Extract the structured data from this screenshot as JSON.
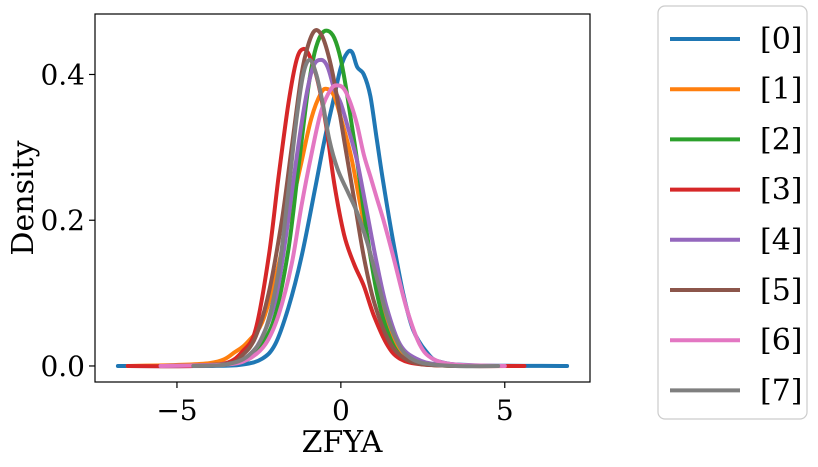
{
  "chart_data": {
    "type": "line",
    "title": "",
    "xlabel": "ZFYA",
    "ylabel": "Density",
    "xlim": [
      -7.5,
      7.6
    ],
    "ylim": [
      -0.022,
      0.483
    ],
    "xticks": [
      -5,
      0,
      5
    ],
    "xtick_labels": [
      "−5",
      "0",
      "5"
    ],
    "yticks": [
      0.0,
      0.2,
      0.4
    ],
    "ytick_labels": [
      "0.0",
      "0.2",
      "0.4"
    ],
    "grid": false,
    "legend_position": "outside-right",
    "series": [
      {
        "name": "[0]",
        "color": "#1f77b4",
        "points": [
          [
            -6.8,
            0
          ],
          [
            -4.0,
            0.0
          ],
          [
            -3.0,
            0.002
          ],
          [
            -2.4,
            0.01
          ],
          [
            -2.0,
            0.03
          ],
          [
            -1.6,
            0.08
          ],
          [
            -1.2,
            0.15
          ],
          [
            -0.8,
            0.24
          ],
          [
            -0.5,
            0.31
          ],
          [
            -0.2,
            0.37
          ],
          [
            0.0,
            0.41
          ],
          [
            0.2,
            0.43
          ],
          [
            0.35,
            0.43
          ],
          [
            0.5,
            0.41
          ],
          [
            0.7,
            0.4
          ],
          [
            0.9,
            0.37
          ],
          [
            1.1,
            0.31
          ],
          [
            1.3,
            0.25
          ],
          [
            1.6,
            0.17
          ],
          [
            1.9,
            0.1
          ],
          [
            2.2,
            0.05
          ],
          [
            2.6,
            0.02
          ],
          [
            3.0,
            0.006
          ],
          [
            4.0,
            0.001
          ],
          [
            6.9,
            0
          ]
        ]
      },
      {
        "name": "[1]",
        "color": "#ff7f0e",
        "points": [
          [
            -6.5,
            0
          ],
          [
            -4.0,
            0.004
          ],
          [
            -3.2,
            0.02
          ],
          [
            -2.8,
            0.035
          ],
          [
            -2.4,
            0.06
          ],
          [
            -2.0,
            0.12
          ],
          [
            -1.6,
            0.2
          ],
          [
            -1.2,
            0.28
          ],
          [
            -0.9,
            0.34
          ],
          [
            -0.6,
            0.375
          ],
          [
            -0.4,
            0.38
          ],
          [
            -0.2,
            0.37
          ],
          [
            0.0,
            0.34
          ],
          [
            0.3,
            0.29
          ],
          [
            0.6,
            0.22
          ],
          [
            1.0,
            0.13
          ],
          [
            1.4,
            0.06
          ],
          [
            1.8,
            0.02
          ],
          [
            2.2,
            0.006
          ],
          [
            3.0,
            0.001
          ],
          [
            4.5,
            0
          ]
        ]
      },
      {
        "name": "[2]",
        "color": "#2ca02c",
        "points": [
          [
            -5.0,
            0
          ],
          [
            -3.5,
            0.002
          ],
          [
            -2.8,
            0.01
          ],
          [
            -2.4,
            0.03
          ],
          [
            -2.0,
            0.07
          ],
          [
            -1.6,
            0.16
          ],
          [
            -1.3,
            0.27
          ],
          [
            -1.0,
            0.38
          ],
          [
            -0.8,
            0.43
          ],
          [
            -0.6,
            0.455
          ],
          [
            -0.4,
            0.46
          ],
          [
            -0.2,
            0.45
          ],
          [
            0.0,
            0.42
          ],
          [
            0.2,
            0.37
          ],
          [
            0.5,
            0.28
          ],
          [
            0.8,
            0.18
          ],
          [
            1.1,
            0.1
          ],
          [
            1.4,
            0.05
          ],
          [
            1.8,
            0.015
          ],
          [
            2.4,
            0.003
          ],
          [
            3.5,
            0
          ]
        ]
      },
      {
        "name": "[3]",
        "color": "#d62728",
        "points": [
          [
            -6.5,
            0
          ],
          [
            -4.5,
            0.0
          ],
          [
            -3.5,
            0.004
          ],
          [
            -3.0,
            0.02
          ],
          [
            -2.6,
            0.05
          ],
          [
            -2.2,
            0.15
          ],
          [
            -1.9,
            0.26
          ],
          [
            -1.6,
            0.36
          ],
          [
            -1.35,
            0.42
          ],
          [
            -1.15,
            0.435
          ],
          [
            -0.95,
            0.425
          ],
          [
            -0.7,
            0.39
          ],
          [
            -0.45,
            0.33
          ],
          [
            -0.2,
            0.25
          ],
          [
            0.1,
            0.18
          ],
          [
            0.4,
            0.14
          ],
          [
            0.7,
            0.11
          ],
          [
            1.0,
            0.07
          ],
          [
            1.4,
            0.03
          ],
          [
            1.8,
            0.01
          ],
          [
            2.5,
            0.002
          ],
          [
            4.0,
            0
          ],
          [
            5.6,
            0
          ]
        ]
      },
      {
        "name": "[4]",
        "color": "#9467bd",
        "points": [
          [
            -5.5,
            0
          ],
          [
            -3.5,
            0.003
          ],
          [
            -2.8,
            0.015
          ],
          [
            -2.4,
            0.04
          ],
          [
            -2.0,
            0.09
          ],
          [
            -1.7,
            0.17
          ],
          [
            -1.4,
            0.27
          ],
          [
            -1.1,
            0.36
          ],
          [
            -0.85,
            0.41
          ],
          [
            -0.6,
            0.42
          ],
          [
            -0.4,
            0.41
          ],
          [
            -0.2,
            0.38
          ],
          [
            0.0,
            0.36
          ],
          [
            0.2,
            0.33
          ],
          [
            0.5,
            0.28
          ],
          [
            0.8,
            0.21
          ],
          [
            1.1,
            0.14
          ],
          [
            1.4,
            0.08
          ],
          [
            1.8,
            0.03
          ],
          [
            2.3,
            0.01
          ],
          [
            3.0,
            0.002
          ],
          [
            4.5,
            0
          ]
        ]
      },
      {
        "name": "[5]",
        "color": "#8c564b",
        "points": [
          [
            -5.5,
            0
          ],
          [
            -3.5,
            0.003
          ],
          [
            -3.0,
            0.015
          ],
          [
            -2.6,
            0.04
          ],
          [
            -2.2,
            0.1
          ],
          [
            -1.8,
            0.2
          ],
          [
            -1.5,
            0.3
          ],
          [
            -1.2,
            0.4
          ],
          [
            -1.0,
            0.44
          ],
          [
            -0.8,
            0.46
          ],
          [
            -0.6,
            0.455
          ],
          [
            -0.4,
            0.43
          ],
          [
            -0.2,
            0.39
          ],
          [
            0.1,
            0.31
          ],
          [
            0.4,
            0.23
          ],
          [
            0.7,
            0.15
          ],
          [
            1.0,
            0.09
          ],
          [
            1.4,
            0.04
          ],
          [
            1.8,
            0.015
          ],
          [
            2.4,
            0.003
          ],
          [
            3.5,
            0
          ]
        ]
      },
      {
        "name": "[6]",
        "color": "#e377c2",
        "points": [
          [
            -5.5,
            0
          ],
          [
            -3.5,
            0.002
          ],
          [
            -2.8,
            0.01
          ],
          [
            -2.3,
            0.03
          ],
          [
            -1.9,
            0.07
          ],
          [
            -1.5,
            0.14
          ],
          [
            -1.2,
            0.22
          ],
          [
            -0.9,
            0.29
          ],
          [
            -0.6,
            0.35
          ],
          [
            -0.3,
            0.38
          ],
          [
            -0.1,
            0.385
          ],
          [
            0.1,
            0.38
          ],
          [
            0.3,
            0.36
          ],
          [
            0.5,
            0.33
          ],
          [
            0.7,
            0.29
          ],
          [
            0.9,
            0.26
          ],
          [
            1.1,
            0.23
          ],
          [
            1.3,
            0.2
          ],
          [
            1.6,
            0.15
          ],
          [
            2.0,
            0.08
          ],
          [
            2.4,
            0.03
          ],
          [
            2.8,
            0.01
          ],
          [
            3.5,
            0.002
          ],
          [
            5.0,
            0
          ]
        ]
      },
      {
        "name": "[7]",
        "color": "#7f7f7f",
        "points": [
          [
            -4.5,
            0
          ],
          [
            -3.5,
            0.002
          ],
          [
            -2.8,
            0.015
          ],
          [
            -2.3,
            0.05
          ],
          [
            -1.9,
            0.13
          ],
          [
            -1.6,
            0.24
          ],
          [
            -1.35,
            0.34
          ],
          [
            -1.15,
            0.4
          ],
          [
            -0.95,
            0.42
          ],
          [
            -0.75,
            0.4
          ],
          [
            -0.55,
            0.36
          ],
          [
            -0.35,
            0.31
          ],
          [
            -0.1,
            0.27
          ],
          [
            0.2,
            0.24
          ],
          [
            0.5,
            0.21
          ],
          [
            0.8,
            0.17
          ],
          [
            1.1,
            0.12
          ],
          [
            1.4,
            0.07
          ],
          [
            1.7,
            0.035
          ],
          [
            2.0,
            0.015
          ],
          [
            2.5,
            0.004
          ],
          [
            3.5,
            0
          ],
          [
            4.8,
            0
          ]
        ]
      }
    ]
  }
}
